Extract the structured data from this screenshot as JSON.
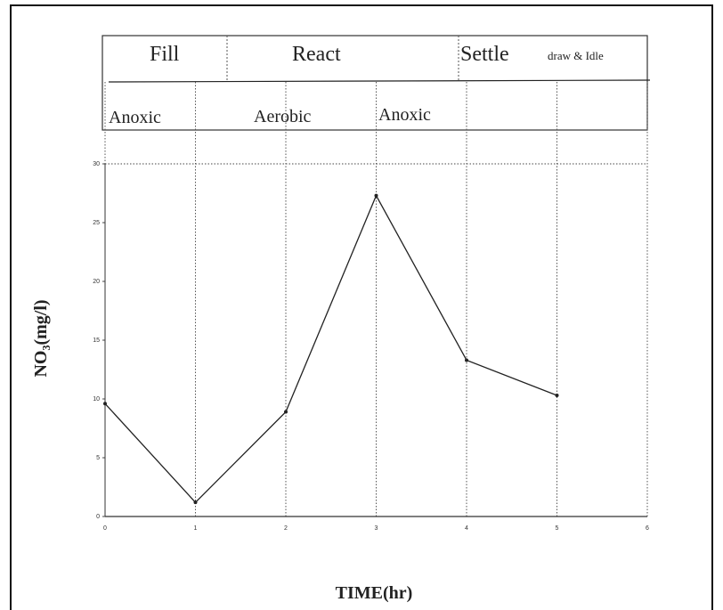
{
  "chart_data": {
    "type": "line",
    "phases": [
      "Fill",
      "React",
      "Settle",
      "draw & Idle"
    ],
    "conditions": [
      "Anoxic",
      "Aerobic",
      "Anoxic"
    ],
    "x_label": "TIME(hr)",
    "y_label": "NO₃(mg/l)",
    "x": [
      0,
      1,
      2,
      3,
      4,
      5
    ],
    "series": [
      {
        "color": "#222222",
        "values": [
          9.6,
          1.2,
          8.9,
          27.3,
          13.3,
          10.3
        ]
      }
    ],
    "xlim": [
      0,
      6
    ],
    "ylim": [
      0,
      30
    ],
    "xticks": [
      0,
      1,
      2,
      3,
      4,
      5,
      6
    ],
    "yticks": [
      0,
      5,
      10,
      15,
      20,
      25,
      30
    ],
    "grid": true
  }
}
